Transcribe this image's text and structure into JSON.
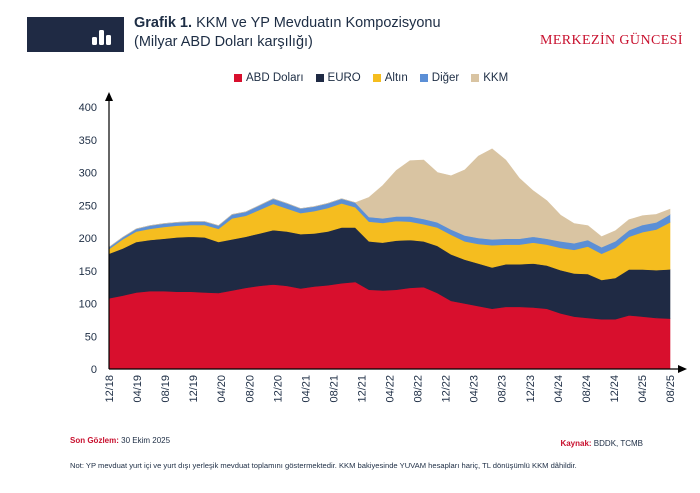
{
  "header": {
    "title_bold": "Grafik 1.",
    "title_rest": "KKM ve YP Mevduatın Kompozisyonu",
    "subtitle": "(Milyar ABD Doları karşılığı)",
    "brand": "MERKEZİN GÜNCESİ",
    "logo_icon": "bar-chart-icon"
  },
  "colors": {
    "usd": "#d80f2d",
    "euro": "#1f2a44",
    "gold": "#f5bd1f",
    "other": "#5b8fd6",
    "kkm": "#d9c4a2",
    "header_box": "#1f2a44",
    "accent": "#c8102e"
  },
  "chart_data": {
    "type": "area",
    "stacked": true,
    "title": "KKM ve YP Mevduatın Kompozisyonu",
    "ylabel": "Milyar ABD Doları karşılığı",
    "ylim": [
      0,
      400
    ],
    "y_ticks": [
      "0",
      "50",
      "100",
      "150",
      "200",
      "250",
      "300",
      "350",
      "400"
    ],
    "x_tick_labels": [
      "12/18",
      "04/19",
      "08/19",
      "12/19",
      "04/20",
      "08/20",
      "12/20",
      "04/21",
      "08/21",
      "12/21",
      "04/22",
      "08/22",
      "12/22",
      "04/23",
      "08/23",
      "12/23",
      "04/24",
      "08/24",
      "12/24",
      "04/25",
      "08/25"
    ],
    "x": [
      "12/18",
      "02/19",
      "04/19",
      "06/19",
      "08/19",
      "10/19",
      "12/19",
      "02/20",
      "04/20",
      "06/20",
      "08/20",
      "10/20",
      "12/20",
      "02/21",
      "04/21",
      "06/21",
      "08/21",
      "10/21",
      "12/21",
      "02/22",
      "04/22",
      "06/22",
      "08/22",
      "10/22",
      "12/22",
      "02/23",
      "04/23",
      "06/23",
      "08/23",
      "10/23",
      "12/23",
      "02/24",
      "04/24",
      "06/24",
      "08/24",
      "10/24",
      "12/24",
      "02/25",
      "04/25",
      "06/25",
      "08/25",
      "10/25"
    ],
    "series": [
      {
        "name": "ABD Doları",
        "color_key": "usd",
        "values": [
          108,
          112,
          117,
          119,
          119,
          118,
          118,
          117,
          116,
          120,
          124,
          127,
          129,
          127,
          123,
          126,
          128,
          131,
          133,
          121,
          120,
          121,
          124,
          125,
          116,
          104,
          100,
          96,
          92,
          95,
          95,
          94,
          92,
          85,
          80,
          78,
          76,
          76,
          82,
          80,
          78,
          77
        ]
      },
      {
        "name": "EURO",
        "color_key": "euro",
        "values": [
          68,
          72,
          77,
          78,
          80,
          83,
          84,
          84,
          78,
          78,
          78,
          80,
          83,
          83,
          83,
          81,
          82,
          85,
          83,
          74,
          73,
          75,
          73,
          70,
          72,
          71,
          67,
          65,
          63,
          65,
          65,
          67,
          66,
          66,
          66,
          67,
          60,
          63,
          70,
          72,
          73,
          75
        ]
      },
      {
        "name": "Altın",
        "color_key": "gold",
        "values": [
          7,
          14,
          16,
          17,
          18,
          18,
          18,
          19,
          20,
          32,
          32,
          36,
          40,
          35,
          32,
          34,
          36,
          37,
          31,
          30,
          30,
          30,
          28,
          26,
          28,
          30,
          28,
          30,
          34,
          30,
          30,
          32,
          32,
          34,
          36,
          42,
          40,
          46,
          50,
          57,
          62,
          72
        ]
      },
      {
        "name": "Diğer",
        "color_key": "other",
        "values": [
          3,
          3,
          4,
          5,
          5,
          5,
          5,
          5,
          5,
          6,
          6,
          7,
          8,
          8,
          7,
          7,
          7,
          7,
          7,
          7,
          7,
          7,
          8,
          8,
          8,
          8,
          9,
          9,
          9,
          9,
          9,
          9,
          9,
          10,
          10,
          10,
          10,
          10,
          10,
          11,
          11,
          12
        ]
      },
      {
        "name": "KKM",
        "color_key": "kkm",
        "values": [
          0,
          0,
          0,
          0,
          0,
          0,
          0,
          0,
          0,
          0,
          0,
          0,
          0,
          0,
          0,
          0,
          0,
          0,
          0,
          30,
          50,
          70,
          85,
          90,
          76,
          82,
          100,
          125,
          138,
          120,
          92,
          70,
          58,
          40,
          30,
          22,
          16,
          16,
          16,
          14,
          12,
          8
        ]
      }
    ],
    "legend": [
      "ABD Doları",
      "EURO",
      "Altın",
      "Diğer",
      "KKM"
    ],
    "legend_position": "top-center",
    "grid": false
  },
  "footer": {
    "last_obs_label": "Son Gözlem:",
    "last_obs_value": "30 Ekim 2025",
    "source_label": "Kaynak:",
    "source_value": "BDDK, TCMB",
    "note": "Not: YP mevduat yurt içi ve yurt dışı yerleşik mevduat toplamını göstermektedir. KKM bakiyesinde YUVAM hesapları hariç, TL dönüşümlü KKM dâhildir."
  }
}
